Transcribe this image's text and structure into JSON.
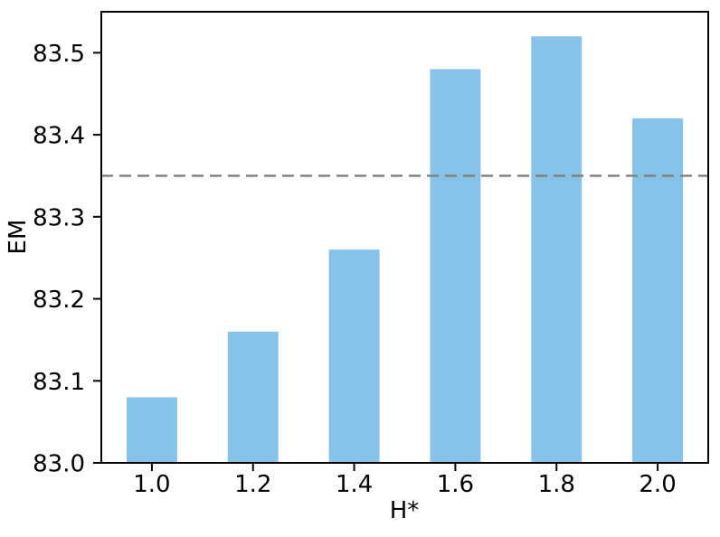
{
  "figure": {
    "background": "#ffffff"
  },
  "chart_data": {
    "type": "bar",
    "title": "",
    "xlabel": "H*",
    "ylabel": "EM",
    "categories": [
      1.0,
      1.2,
      1.4,
      1.6,
      1.8,
      2.0
    ],
    "values": [
      83.08,
      83.16,
      83.26,
      83.48,
      83.52,
      83.42
    ],
    "bar_width": 0.1,
    "bar_color": "#87c2e9",
    "xlim": [
      0.9,
      2.1
    ],
    "ylim": [
      83.0,
      83.55
    ],
    "xticks": [
      1.0,
      1.2,
      1.4,
      1.6,
      1.8,
      2.0
    ],
    "yticks": [
      83.0,
      83.1,
      83.2,
      83.3,
      83.4,
      83.5
    ],
    "tick_decimals": 1,
    "hline": {
      "y": 83.35,
      "color": "#7f7f7f",
      "style": "dashed"
    },
    "grid": false,
    "axis_color": "#000000",
    "text_color": "#000000"
  }
}
